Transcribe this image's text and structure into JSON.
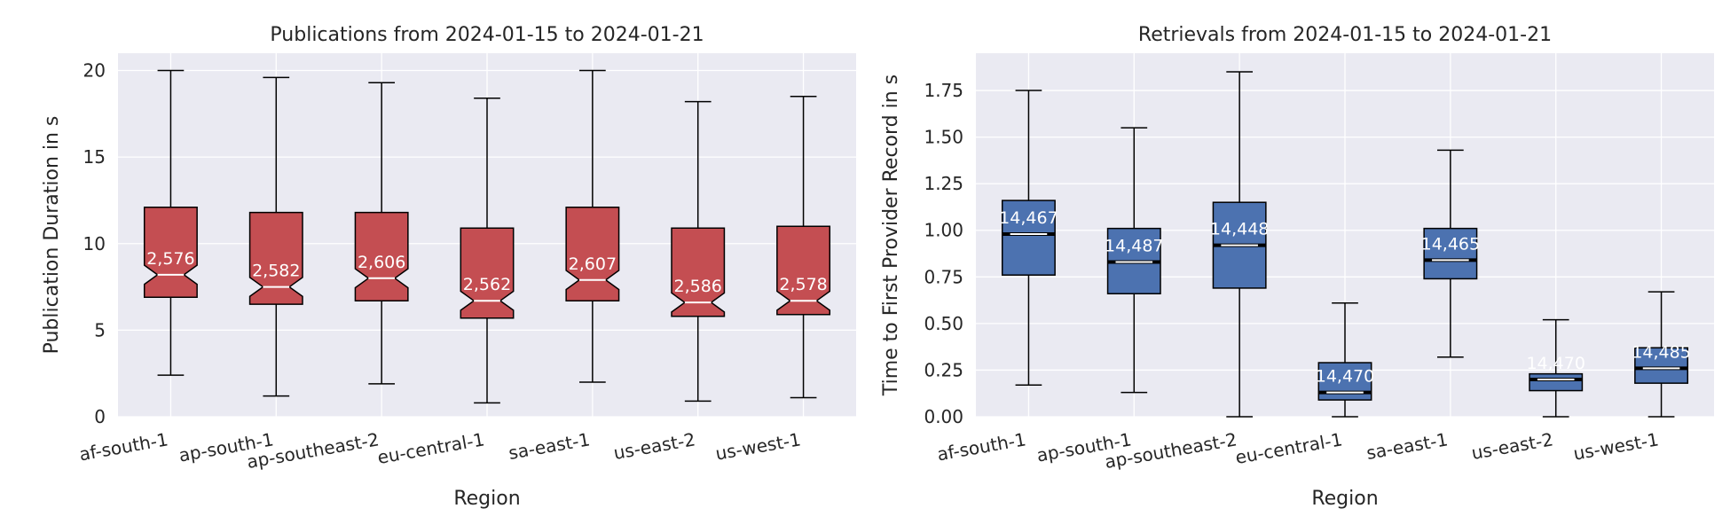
{
  "chart_data": [
    {
      "type": "box",
      "title": "Publications from 2024-01-15 to 2024-01-21",
      "xlabel": "Region",
      "ylabel": "Publication Duration in s",
      "ylim": [
        0,
        21
      ],
      "yticks": [
        0,
        5,
        10,
        15,
        20
      ],
      "notched": true,
      "color": "#C44E52",
      "median_color": "#ffffff",
      "grid": true,
      "categories": [
        "af-south-1",
        "ap-south-1",
        "ap-southeast-2",
        "eu-central-1",
        "sa-east-1",
        "us-east-2",
        "us-west-1"
      ],
      "boxes": [
        {
          "whislo": 2.4,
          "q1": 6.9,
          "med": 8.2,
          "q3": 12.1,
          "whishi": 20.0,
          "n_label": "2,576"
        },
        {
          "whislo": 1.2,
          "q1": 6.5,
          "med": 7.5,
          "q3": 11.8,
          "whishi": 19.6,
          "n_label": "2,582"
        },
        {
          "whislo": 1.9,
          "q1": 6.7,
          "med": 8.0,
          "q3": 11.8,
          "whishi": 19.3,
          "n_label": "2,606"
        },
        {
          "whislo": 0.8,
          "q1": 5.7,
          "med": 6.7,
          "q3": 10.9,
          "whishi": 18.4,
          "n_label": "2,562"
        },
        {
          "whislo": 2.0,
          "q1": 6.7,
          "med": 7.9,
          "q3": 12.1,
          "whishi": 20.0,
          "n_label": "2,607"
        },
        {
          "whislo": 0.9,
          "q1": 5.8,
          "med": 6.6,
          "q3": 10.9,
          "whishi": 18.2,
          "n_label": "2,586"
        },
        {
          "whislo": 1.1,
          "q1": 5.9,
          "med": 6.7,
          "q3": 11.0,
          "whishi": 18.5,
          "n_label": "2,578"
        }
      ]
    },
    {
      "type": "box",
      "title": "Retrievals from 2024-01-15 to 2024-01-21",
      "xlabel": "Region",
      "ylabel": "Time to First Provider Record in s",
      "ylim": [
        0,
        1.95
      ],
      "yticks": [
        0.0,
        0.25,
        0.5,
        0.75,
        1.0,
        1.25,
        1.5,
        1.75
      ],
      "ytick_labels": [
        "0.00",
        "0.25",
        "0.50",
        "0.75",
        "1.00",
        "1.25",
        "1.50",
        "1.75"
      ],
      "notched": false,
      "color": "#4C72B0",
      "median_color": "#ffffff",
      "grid": true,
      "categories": [
        "af-south-1",
        "ap-south-1",
        "ap-southeast-2",
        "eu-central-1",
        "sa-east-1",
        "us-east-2",
        "us-west-1"
      ],
      "boxes": [
        {
          "whislo": 0.17,
          "q1": 0.76,
          "med": 0.98,
          "q3": 1.16,
          "whishi": 1.75,
          "n_label": "14,467"
        },
        {
          "whislo": 0.13,
          "q1": 0.66,
          "med": 0.83,
          "q3": 1.01,
          "whishi": 1.55,
          "n_label": "14,487"
        },
        {
          "whislo": 0.0,
          "q1": 0.69,
          "med": 0.92,
          "q3": 1.15,
          "whishi": 1.85,
          "n_label": "14,448"
        },
        {
          "whislo": 0.0,
          "q1": 0.09,
          "med": 0.13,
          "q3": 0.29,
          "whishi": 0.61,
          "n_label": "14,470"
        },
        {
          "whislo": 0.32,
          "q1": 0.74,
          "med": 0.84,
          "q3": 1.01,
          "whishi": 1.43,
          "n_label": "14,465"
        },
        {
          "whislo": 0.0,
          "q1": 0.14,
          "med": 0.2,
          "q3": 0.23,
          "whishi": 0.52,
          "n_label": "14,470"
        },
        {
          "whislo": 0.0,
          "q1": 0.18,
          "med": 0.26,
          "q3": 0.37,
          "whishi": 0.67,
          "n_label": "14,485"
        }
      ]
    }
  ]
}
